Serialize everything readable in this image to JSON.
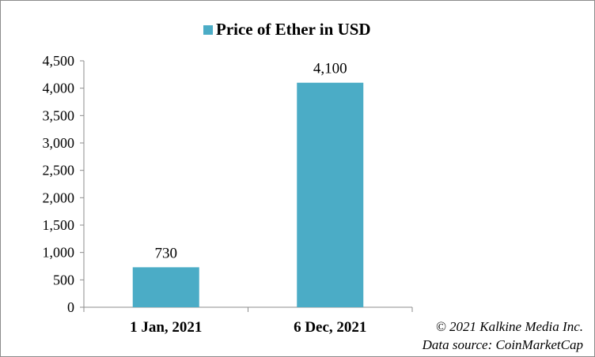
{
  "chart_data": {
    "type": "bar",
    "title": "",
    "legend": [
      "Price of Ether in USD"
    ],
    "legend_position": "top",
    "categories": [
      "1 Jan, 2021",
      "6 Dec, 2021"
    ],
    "series": [
      {
        "name": "Price of Ether in USD",
        "values": [
          730,
          4100
        ],
        "color": "#4bacc6"
      }
    ],
    "data_labels": [
      "730",
      "4,100"
    ],
    "ylim": [
      0,
      4500
    ],
    "yticks": [
      0,
      500,
      1000,
      1500,
      2000,
      2500,
      3000,
      3500,
      4000,
      4500
    ],
    "ytick_labels": [
      "0",
      "500",
      "1,000",
      "1,500",
      "2,000",
      "2,500",
      "3,000",
      "3,500",
      "4,000",
      "4,500"
    ],
    "grid": false,
    "xlabel": "",
    "ylabel": ""
  },
  "footer": {
    "copyright": "© 2021 Kalkine Media Inc.",
    "source": "Data source:  CoinMarketCap"
  }
}
